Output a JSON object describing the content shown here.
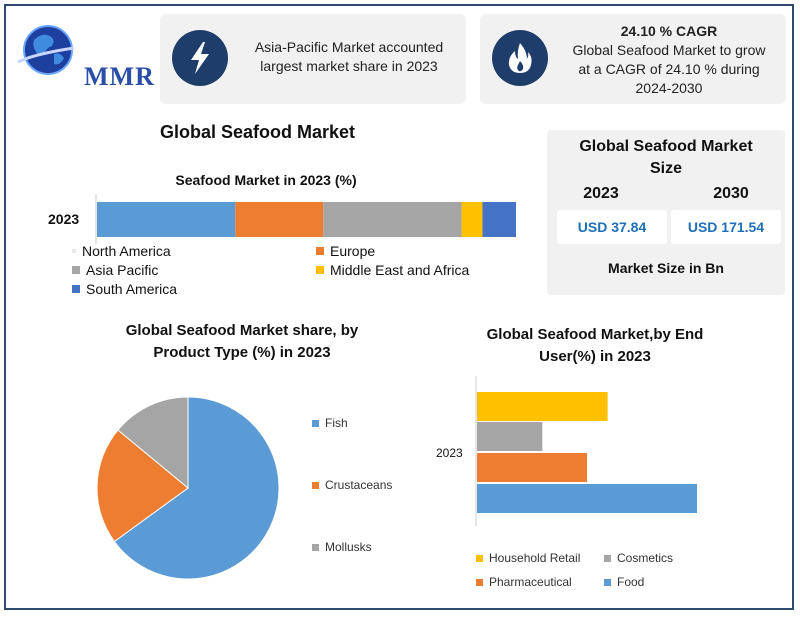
{
  "header": {
    "logo_text": "MMR",
    "box1_text_line1": "Asia-Pacific Market accounted",
    "box1_text_line2": "largest market share in 2023",
    "box2_title": "24.10 % CAGR",
    "box2_line1": "Global Seafood Market to grow",
    "box2_line2": "at a CAGR of 24.10 % during",
    "box2_line3": "2024-2030",
    "icon1": "lightning-bolt-icon",
    "icon2": "flame-icon"
  },
  "main_title": "Global Seafood Market",
  "market_size": {
    "title_line1": "Global Seafood Market",
    "title_line2": "Size",
    "year_a": "2023",
    "year_b": "2030",
    "value_a": "USD 37.84",
    "value_b": "USD 171.54",
    "footer": "Market Size in Bn"
  },
  "colors": {
    "north_america": "#5b9bd5",
    "europe": "#ed7d31",
    "asia_pacific": "#a5a5a5",
    "mea": "#ffc000",
    "south_america": "#4472c4",
    "fish": "#5b9bd5",
    "crustaceans": "#ed7d31",
    "mollusks": "#a5a5a5",
    "household": "#ffc000",
    "cosmetics": "#a5a5a5",
    "pharma": "#ed7d31",
    "food": "#5b9bd5"
  },
  "chart_data": [
    {
      "type": "bar",
      "orientation": "horizontal-stacked",
      "title": "Seafood Market in 2023 (%)",
      "categories": [
        "2023"
      ],
      "series": [
        {
          "name": "North America",
          "values": [
            33
          ]
        },
        {
          "name": "Europe",
          "values": [
            21
          ]
        },
        {
          "name": "Asia Pacific",
          "values": [
            33
          ]
        },
        {
          "name": "Middle East and Africa",
          "values": [
            5
          ]
        },
        {
          "name": "South America",
          "values": [
            8
          ]
        }
      ],
      "legend": "bottom"
    },
    {
      "type": "pie",
      "title_line1": "Global Seafood Market share, by",
      "title_line2": "Product Type (%) in 2023",
      "labels": [
        "Fish",
        "Crustaceans",
        "Mollusks"
      ],
      "values": [
        65,
        21,
        14
      ],
      "legend": "right"
    },
    {
      "type": "bar",
      "orientation": "horizontal",
      "title_line1": "Global Seafood Market,by End",
      "title_line2": "User(%) in 2023",
      "categories": [
        "2023"
      ],
      "series": [
        {
          "name": "Household Retail",
          "values": [
            19
          ]
        },
        {
          "name": "Cosmetics",
          "values": [
            9.5
          ]
        },
        {
          "name": "Pharmaceutical",
          "values": [
            16
          ]
        },
        {
          "name": "Food",
          "values": [
            32
          ]
        }
      ],
      "legend": "bottom"
    }
  ]
}
